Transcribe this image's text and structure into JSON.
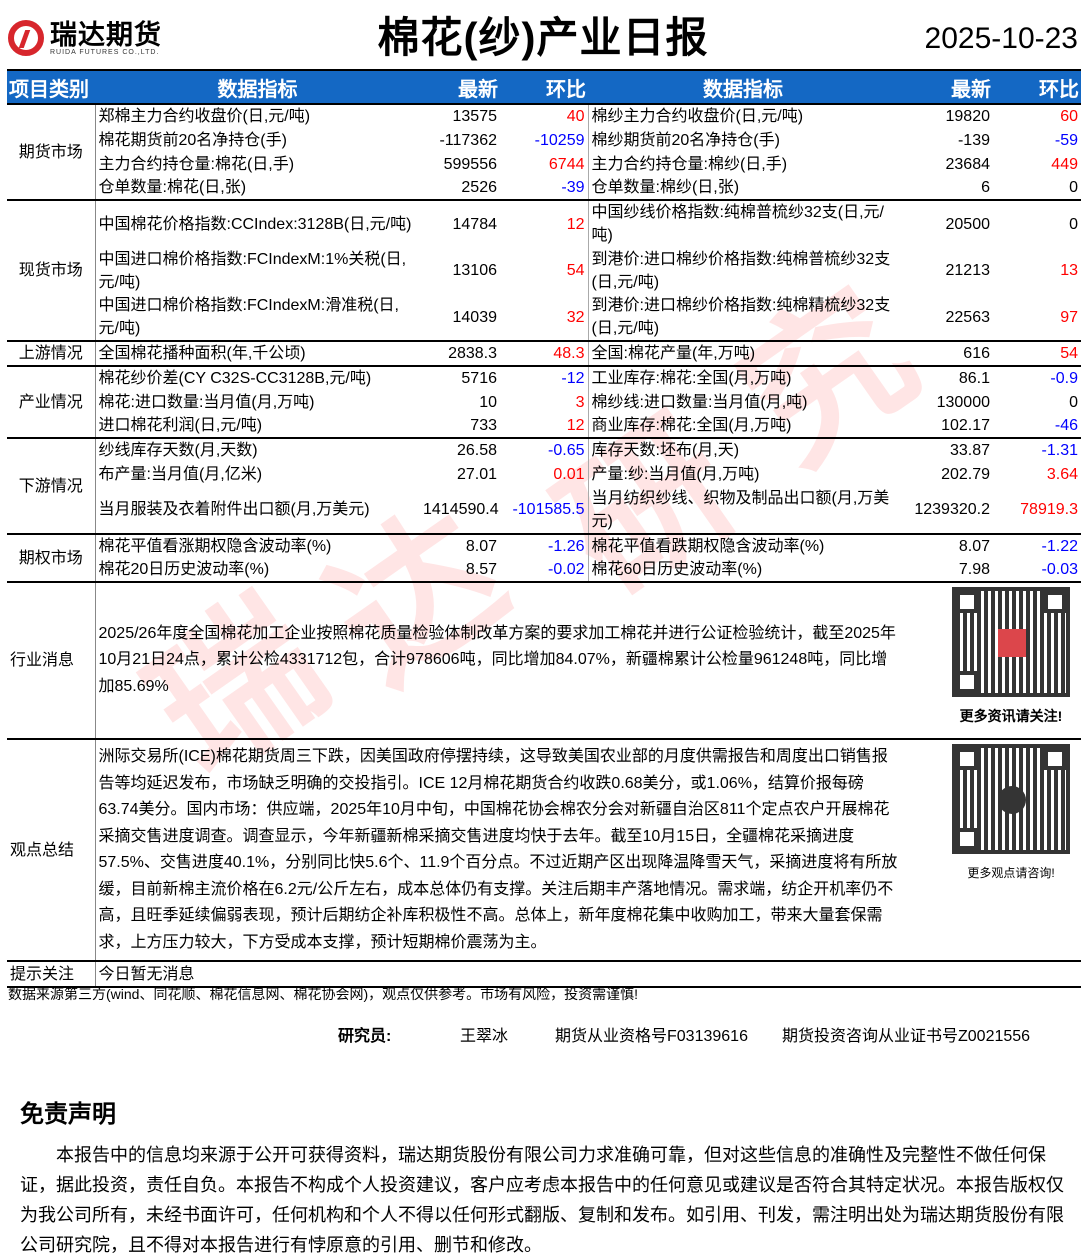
{
  "header": {
    "logo_cn": "瑞达期货",
    "logo_en": "RUIDA FUTURES CO.,LTD.",
    "title": "棉花(纱)产业日报",
    "date": "2025-10-23"
  },
  "columns": [
    "项目类别",
    "数据指标",
    "最新",
    "环比",
    "数据指标",
    "最新",
    "环比"
  ],
  "sections": [
    {
      "category": "期货市场",
      "rows": [
        [
          "郑棉主力合约收盘价(日,元/吨)",
          "13575",
          "40",
          "棉纱主力合约收盘价(日,元/吨)",
          "19820",
          "60"
        ],
        [
          "棉花期货前20名净持仓(手)",
          "-117362",
          "-10259",
          "棉纱期货前20名净持仓(手)",
          "-139",
          "-59"
        ],
        [
          "主力合约持仓量:棉花(日,手)",
          "599556",
          "6744",
          "主力合约持仓量:棉纱(日,手)",
          "23684",
          "449"
        ],
        [
          "仓单数量:棉花(日,张)",
          "2526",
          "-39",
          "仓单数量:棉纱(日,张)",
          "6",
          "0"
        ]
      ]
    },
    {
      "category": "现货市场",
      "rows": [
        [
          "中国棉花价格指数:CCIndex:3128B(日,元/吨)",
          "14784",
          "12",
          "中国纱线价格指数:纯棉普梳纱32支(日,元/吨)",
          "20500",
          "0"
        ],
        [
          "中国进口棉价格指数:FCIndexM:1%关税(日,元/吨)",
          "13106",
          "54",
          "到港价:进口棉纱价格指数:纯棉普梳纱32支(日,元/吨)",
          "21213",
          "13"
        ],
        [
          "中国进口棉价格指数:FCIndexM:滑准税(日,元/吨)",
          "14039",
          "32",
          "到港价:进口棉纱价格指数:纯棉精梳纱32支(日,元/吨)",
          "22563",
          "97"
        ]
      ]
    },
    {
      "category": "上游情况",
      "rows": [
        [
          "全国棉花播种面积(年,千公顷)",
          "2838.3",
          "48.3",
          "全国:棉花产量(年,万吨)",
          "616",
          "54"
        ]
      ]
    },
    {
      "category": "产业情况",
      "rows": [
        [
          "棉花纱价差(CY C32S-CC3128B,元/吨)",
          "5716",
          "-12",
          "工业库存:棉花:全国(月,万吨)",
          "86.1",
          "-0.9"
        ],
        [
          "棉花:进口数量:当月值(月,万吨)",
          "10",
          "3",
          "棉纱线:进口数量:当月值(月,吨)",
          "130000",
          "0"
        ],
        [
          "进口棉花利润(日,元/吨)",
          "733",
          "12",
          "商业库存:棉花:全国(月,万吨)",
          "102.17",
          "-46"
        ]
      ]
    },
    {
      "category": "下游情况",
      "rows": [
        [
          "纱线库存天数(月,天数)",
          "26.58",
          "-0.65",
          "库存天数:坯布(月,天)",
          "33.87",
          "-1.31"
        ],
        [
          "布产量:当月值(月,亿米)",
          "27.01",
          "0.01",
          "产量:纱:当月值(月,万吨)",
          "202.79",
          "3.64"
        ],
        [
          "当月服装及衣着附件出口额(月,万美元)",
          "1414590.4",
          "-101585.5",
          "当月纺织纱线、织物及制品出口额(月,万美元)",
          "1239320.2",
          "78919.3"
        ]
      ]
    },
    {
      "category": "期权市场",
      "rows": [
        [
          "棉花平值看涨期权隐含波动率(%)",
          "8.07",
          "-1.26",
          "棉花平值看跌期权隐含波动率(%)",
          "8.07",
          "-1.22"
        ],
        [
          "棉花20日历史波动率(%)",
          "8.57",
          "-0.02",
          "棉花60日历史波动率(%)",
          "7.98",
          "-0.03"
        ]
      ]
    }
  ],
  "news": {
    "category": "行业消息",
    "text": "2025/26年度全国棉花加工企业按照棉花质量检验体制改革方案的要求加工棉花并进行公证检验统计，截至2025年10月21日24点，累计公检4331712包，合计978606吨，同比增加84.07%，新疆棉累计公检量961248吨，同比增加85.69%",
    "qr_caption": "更多资讯请关注!"
  },
  "view": {
    "category": "观点总结",
    "text": "洲际交易所(ICE)棉花期货周三下跌，因美国政府停摆持续，这导致美国农业部的月度供需报告和周度出口销售报告等均延迟发布，市场缺乏明确的交投指引。ICE 12月棉花期货合约收跌0.68美分，或1.06%，结算价报每磅63.74美分。国内市场：供应端，2025年10月中旬，中国棉花协会棉农分会对新疆自治区811个定点农户开展棉花采摘交售进度调查。调查显示，今年新疆新棉采摘交售进度均快于去年。截至10月15日，全疆棉花采摘进度57.5%、交售进度40.1%，分别同比快5.6个、11.9个百分点。不过近期产区出现降温降雪天气，采摘进度将有所放缓，目前新棉主流价格在6.2元/公斤左右，成本总体仍有支撑。关注后期丰产落地情况。需求端，纺企开机率仍不高，且旺季延续偏弱表现，预计后期纺企补库积极性不高。总体上，新年度棉花集中收购加工，带来大量套保需求，上方压力较大，下方受成本支撑，预计短期棉价震荡为主。",
    "qr_caption": "更多观点请咨询!"
  },
  "tips": {
    "category": "提示关注",
    "text": "今日暂无消息"
  },
  "footer": {
    "source": "数据来源第三方(wind、同花顺、棉花信息网、棉花协会网)，观点仅供参考。市场有风险，投资需谨慎!",
    "researcher_label": "研究员:",
    "researcher_name": "王翠冰",
    "license1": "期货从业资格号F03139616",
    "license2": "期货投资咨询从业证书号Z0021556"
  },
  "disclaimer": {
    "title": "免责声明",
    "text": "本报告中的信息均来源于公开可获得资料，瑞达期货股份有限公司力求准确可靠，但对这些信息的准确性及完整性不做任何保证，据此投资，责任自负。本报告不构成个人投资建议，客户应考虑本报告中的任何意见或建议是否符合其特定状况。本报告版权仅为我公司所有，未经书面许可，任何机构和个人不得以任何形式翻版、复制和发布。如引用、刊发，需注明出处为瑞达期货股份有限公司研究院，且不得对本报告进行有悖原意的引用、删节和修改。"
  },
  "watermark": "瑞达研究",
  "colors": {
    "header_bg": "#1468c4",
    "positive": "#ff0000",
    "negative": "#0000ff"
  }
}
